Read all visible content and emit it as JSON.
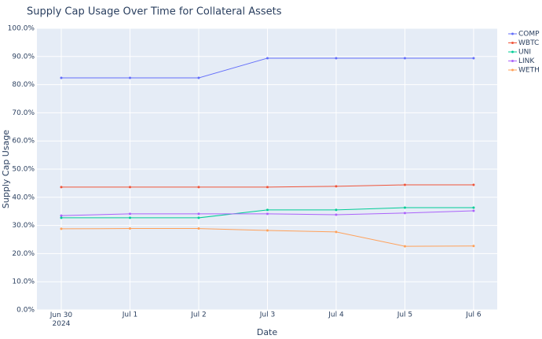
{
  "chart_data": {
    "type": "line",
    "title": "Supply Cap Usage Over Time for Collateral Assets",
    "x_label": "Date",
    "y_label": "Supply Cap Usage",
    "x": [
      "2024-06-30",
      "2024-07-01",
      "2024-07-02",
      "2024-07-03",
      "2024-07-04",
      "2024-07-05",
      "2024-07-06"
    ],
    "xlim": [
      "2024-06-29T15:30",
      "2024-07-06T08:15"
    ],
    "xticks": [
      {
        "value": "2024-06-30",
        "label": "Jun 30\n2024"
      },
      {
        "value": "2024-07-01",
        "label": "Jul 1"
      },
      {
        "value": "2024-07-02",
        "label": "Jul 2"
      },
      {
        "value": "2024-07-03",
        "label": "Jul 3"
      },
      {
        "value": "2024-07-04",
        "label": "Jul 4"
      },
      {
        "value": "2024-07-05",
        "label": "Jul 5"
      },
      {
        "value": "2024-07-06",
        "label": "Jul 6"
      }
    ],
    "ylim": [
      0,
      100
    ],
    "yticks": [
      {
        "value": 0,
        "label": "0.0%"
      },
      {
        "value": 10,
        "label": "10.0%"
      },
      {
        "value": 20,
        "label": "20.0%"
      },
      {
        "value": 30,
        "label": "30.0%"
      },
      {
        "value": 40,
        "label": "40.0%"
      },
      {
        "value": 50,
        "label": "50.0%"
      },
      {
        "value": 60,
        "label": "60.0%"
      },
      {
        "value": 70,
        "label": "70.0%"
      },
      {
        "value": 80,
        "label": "80.0%"
      },
      {
        "value": 90,
        "label": "90.0%"
      },
      {
        "value": 100,
        "label": "100.0%"
      }
    ],
    "grid": true,
    "legend": "outside-top-right",
    "series": [
      {
        "name": "COMP",
        "color": "#636efa",
        "values": [
          82.4,
          82.4,
          82.4,
          89.4,
          89.4,
          89.4,
          89.4
        ]
      },
      {
        "name": "WBTC",
        "color": "#ef553b",
        "values": [
          43.6,
          43.6,
          43.6,
          43.6,
          43.9,
          44.4,
          44.4
        ]
      },
      {
        "name": "UNI",
        "color": "#00cc96",
        "values": [
          32.7,
          32.7,
          32.7,
          35.5,
          35.5,
          36.3,
          36.3
        ]
      },
      {
        "name": "LINK",
        "color": "#ab63fa",
        "values": [
          33.5,
          34.1,
          34.1,
          34.1,
          33.8,
          34.4,
          35.2
        ]
      },
      {
        "name": "WETH",
        "color": "#ffa15a",
        "values": [
          28.8,
          28.9,
          28.9,
          28.2,
          27.7,
          22.6,
          22.7
        ]
      }
    ]
  }
}
